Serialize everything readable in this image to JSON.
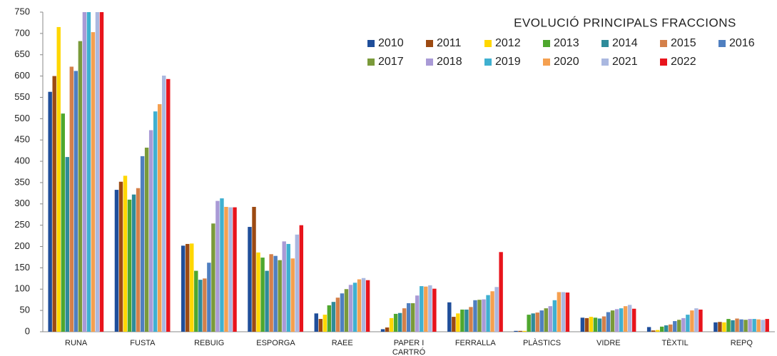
{
  "chart_data": {
    "type": "bar",
    "title": "EVOLUCIÓ PRINCIPALS FRACCIONS",
    "categories": [
      "RUNA",
      "FUSTA",
      "REBUIG",
      "ESPORGA",
      "RAEE",
      "PAPER I CARTRÓ",
      "FERRALLA",
      "PLÀSTICS",
      "VIDRE",
      "TÈXTIL",
      "REPQ"
    ],
    "series": [
      {
        "name": "2010",
        "color": "#1f4e9a",
        "values": [
          563,
          333,
          202,
          246,
          43,
          6,
          69,
          2,
          33,
          11,
          22
        ]
      },
      {
        "name": "2011",
        "color": "#9c4a12",
        "values": [
          600,
          352,
          206,
          293,
          30,
          10,
          35,
          2,
          32,
          3,
          23
        ]
      },
      {
        "name": "2012",
        "color": "#ffd700",
        "values": [
          715,
          366,
          207,
          186,
          40,
          32,
          43,
          2,
          35,
          4,
          22
        ]
      },
      {
        "name": "2013",
        "color": "#4ea72e",
        "values": [
          512,
          310,
          143,
          174,
          62,
          42,
          52,
          40,
          33,
          12,
          30
        ]
      },
      {
        "name": "2014",
        "color": "#2e8b9a",
        "values": [
          410,
          322,
          122,
          143,
          70,
          44,
          52,
          43,
          31,
          15,
          27
        ]
      },
      {
        "name": "2015",
        "color": "#d4804a",
        "values": [
          622,
          337,
          125,
          182,
          80,
          55,
          58,
          45,
          36,
          17,
          31
        ]
      },
      {
        "name": "2016",
        "color": "#4f7fc0",
        "values": [
          612,
          412,
          162,
          178,
          90,
          67,
          74,
          50,
          46,
          25,
          29
        ]
      },
      {
        "name": "2017",
        "color": "#7a9a3a",
        "values": [
          682,
          432,
          254,
          168,
          100,
          67,
          75,
          55,
          50,
          28,
          28
        ]
      },
      {
        "name": "2018",
        "color": "#a99ad6",
        "values": [
          750,
          473,
          307,
          212,
          110,
          85,
          76,
          60,
          53,
          32,
          30
        ]
      },
      {
        "name": "2019",
        "color": "#3fb0d0",
        "values": [
          750,
          517,
          313,
          206,
          115,
          107,
          86,
          74,
          55,
          40,
          30
        ]
      },
      {
        "name": "2020",
        "color": "#f5a050",
        "values": [
          703,
          534,
          293,
          172,
          123,
          106,
          95,
          93,
          60,
          50,
          29
        ]
      },
      {
        "name": "2021",
        "color": "#aab8e0",
        "values": [
          750,
          601,
          292,
          228,
          126,
          109,
          105,
          93,
          63,
          55,
          28
        ]
      },
      {
        "name": "2022",
        "color": "#e8141c",
        "values": [
          750,
          593,
          292,
          250,
          121,
          101,
          187,
          92,
          54,
          52,
          30
        ]
      }
    ],
    "ylim": [
      0,
      750
    ],
    "yticks": [
      0,
      50,
      100,
      150,
      200,
      250,
      300,
      350,
      400,
      450,
      500,
      550,
      600,
      650,
      700,
      750
    ],
    "grid": false,
    "legend": "upper right"
  }
}
